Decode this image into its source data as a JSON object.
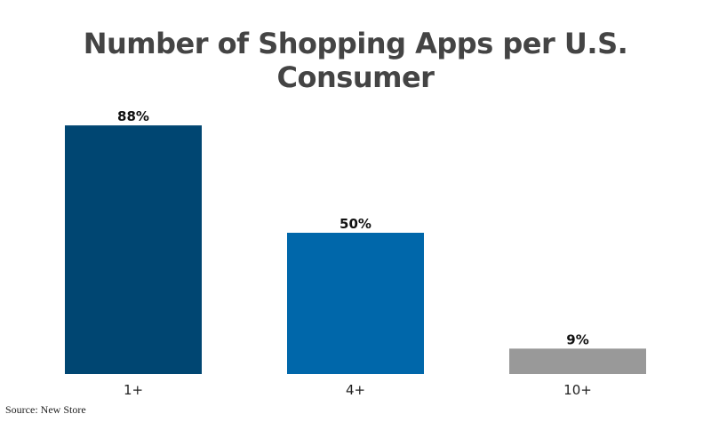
{
  "chart_data": {
    "type": "bar",
    "title": "Number of Shopping Apps per U.S. Consumer",
    "xlabel": "",
    "ylabel": "",
    "categories": [
      "1+",
      "4+",
      "10+"
    ],
    "values": [
      88,
      50,
      9
    ],
    "value_labels": [
      "88%",
      "50%",
      "9%"
    ],
    "unit": "%",
    "ylim": [
      0,
      100
    ],
    "grid": false,
    "legend": "none",
    "colors": [
      "#004672",
      "#0067aa",
      "#999999"
    ]
  },
  "source": "Source: New Store"
}
